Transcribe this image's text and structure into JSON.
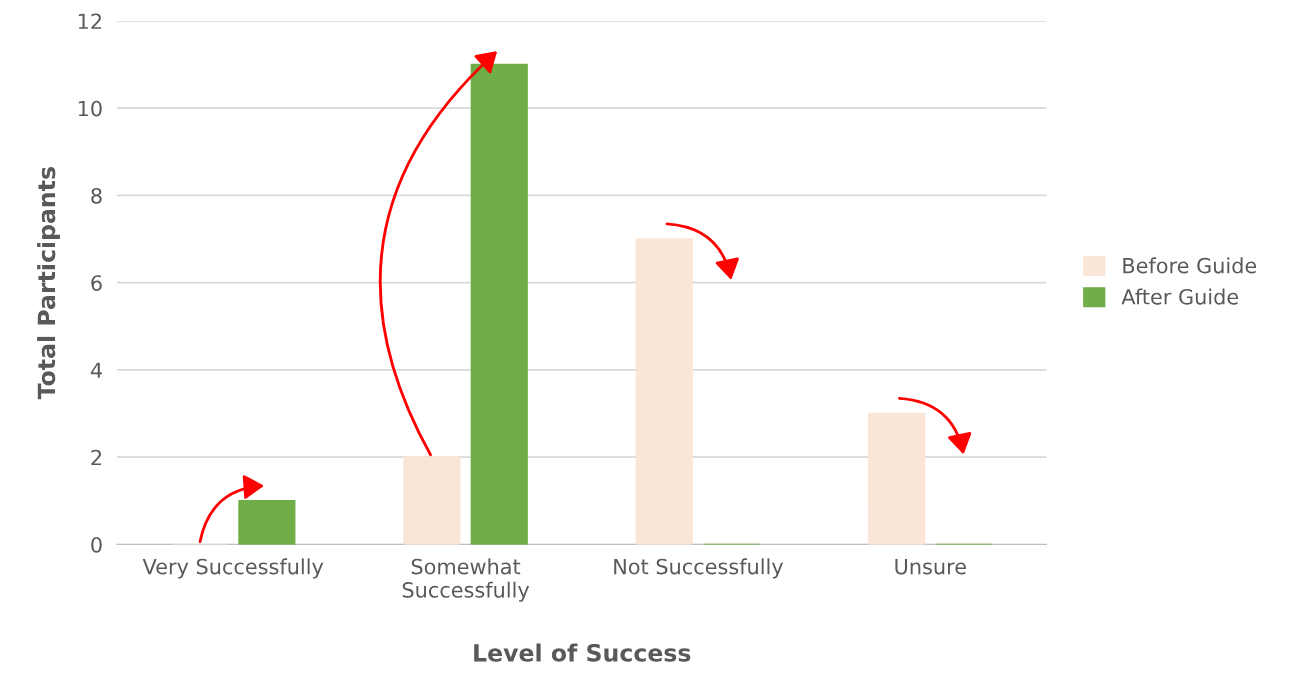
{
  "chart_data": {
    "type": "bar",
    "xlabel": "Level of Success",
    "ylabel": "Total Participants",
    "categories": [
      "Very Successfully",
      "Somewhat\nSuccessfully",
      "Not Successfully",
      "Unsure"
    ],
    "series": [
      {
        "name": "Before Guide",
        "color": "#fbe5d6",
        "values": [
          0,
          2,
          7,
          3
        ]
      },
      {
        "name": "After Guide",
        "color": "#70ad47",
        "values": [
          1,
          11,
          0,
          0
        ]
      }
    ],
    "ylim": [
      0,
      12
    ],
    "yticks": [
      0,
      2,
      4,
      6,
      8,
      10,
      12
    ],
    "grid": "y",
    "legend": "right"
  }
}
